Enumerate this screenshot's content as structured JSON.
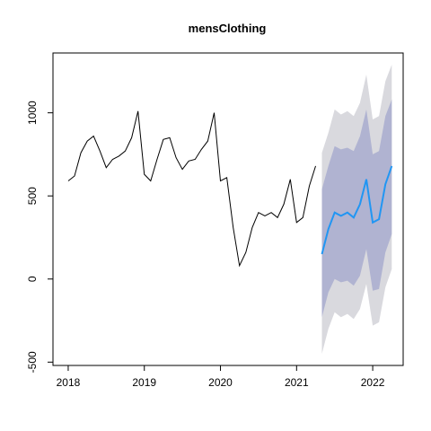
{
  "chart_data": {
    "type": "line",
    "title": "mensClothing",
    "xlabel": "",
    "ylabel": "",
    "xlim": [
      2017.8,
      2022.4
    ],
    "ylim": [
      -520,
      1360
    ],
    "x_ticks": [
      2018,
      2019,
      2020,
      2021,
      2022
    ],
    "x_tick_labels": [
      "2018",
      "2019",
      "2020",
      "2021",
      "2022"
    ],
    "y_ticks": [
      -500,
      0,
      500,
      1000
    ],
    "y_tick_labels": [
      "-500",
      "0",
      "500",
      "1000"
    ],
    "grid": false,
    "legend": "none",
    "colors": {
      "history": "#000000",
      "forecast": "#2196f3",
      "band_80": "#b0b3d1",
      "band_95": "#d9d9de"
    },
    "history": {
      "x": [
        2018.0,
        2018.083,
        2018.167,
        2018.25,
        2018.333,
        2018.417,
        2018.5,
        2018.583,
        2018.667,
        2018.75,
        2018.833,
        2018.917,
        2019.0,
        2019.083,
        2019.167,
        2019.25,
        2019.333,
        2019.417,
        2019.5,
        2019.583,
        2019.667,
        2019.75,
        2019.833,
        2019.917,
        2020.0,
        2020.083,
        2020.167,
        2020.25,
        2020.333,
        2020.417,
        2020.5,
        2020.583,
        2020.667,
        2020.75,
        2020.833,
        2020.917,
        2021.0,
        2021.083,
        2021.167,
        2021.25
      ],
      "y": [
        590,
        620,
        760,
        830,
        860,
        770,
        670,
        720,
        740,
        770,
        850,
        1010,
        630,
        590,
        720,
        840,
        850,
        730,
        660,
        710,
        720,
        780,
        830,
        1000,
        590,
        610,
        310,
        80,
        160,
        310,
        400,
        380,
        400,
        370,
        450,
        600,
        340,
        370,
        560,
        680
      ]
    },
    "forecast": {
      "x": [
        2021.333,
        2021.417,
        2021.5,
        2021.583,
        2021.667,
        2021.75,
        2021.833,
        2021.917,
        2022.0,
        2022.083,
        2022.167,
        2022.25
      ],
      "mean": [
        150,
        300,
        400,
        380,
        400,
        370,
        450,
        600,
        340,
        360,
        570,
        680
      ],
      "lo80": [
        -230,
        -80,
        0,
        -20,
        -10,
        -40,
        20,
        180,
        -70,
        -60,
        160,
        270
      ],
      "hi80": [
        540,
        680,
        800,
        780,
        790,
        770,
        860,
        1020,
        750,
        770,
        980,
        1080
      ],
      "lo95": [
        -450,
        -300,
        -200,
        -230,
        -210,
        -240,
        -180,
        -30,
        -280,
        -260,
        -50,
        60
      ],
      "hi95": [
        760,
        880,
        1020,
        990,
        1010,
        980,
        1060,
        1230,
        960,
        980,
        1190,
        1290
      ]
    }
  }
}
